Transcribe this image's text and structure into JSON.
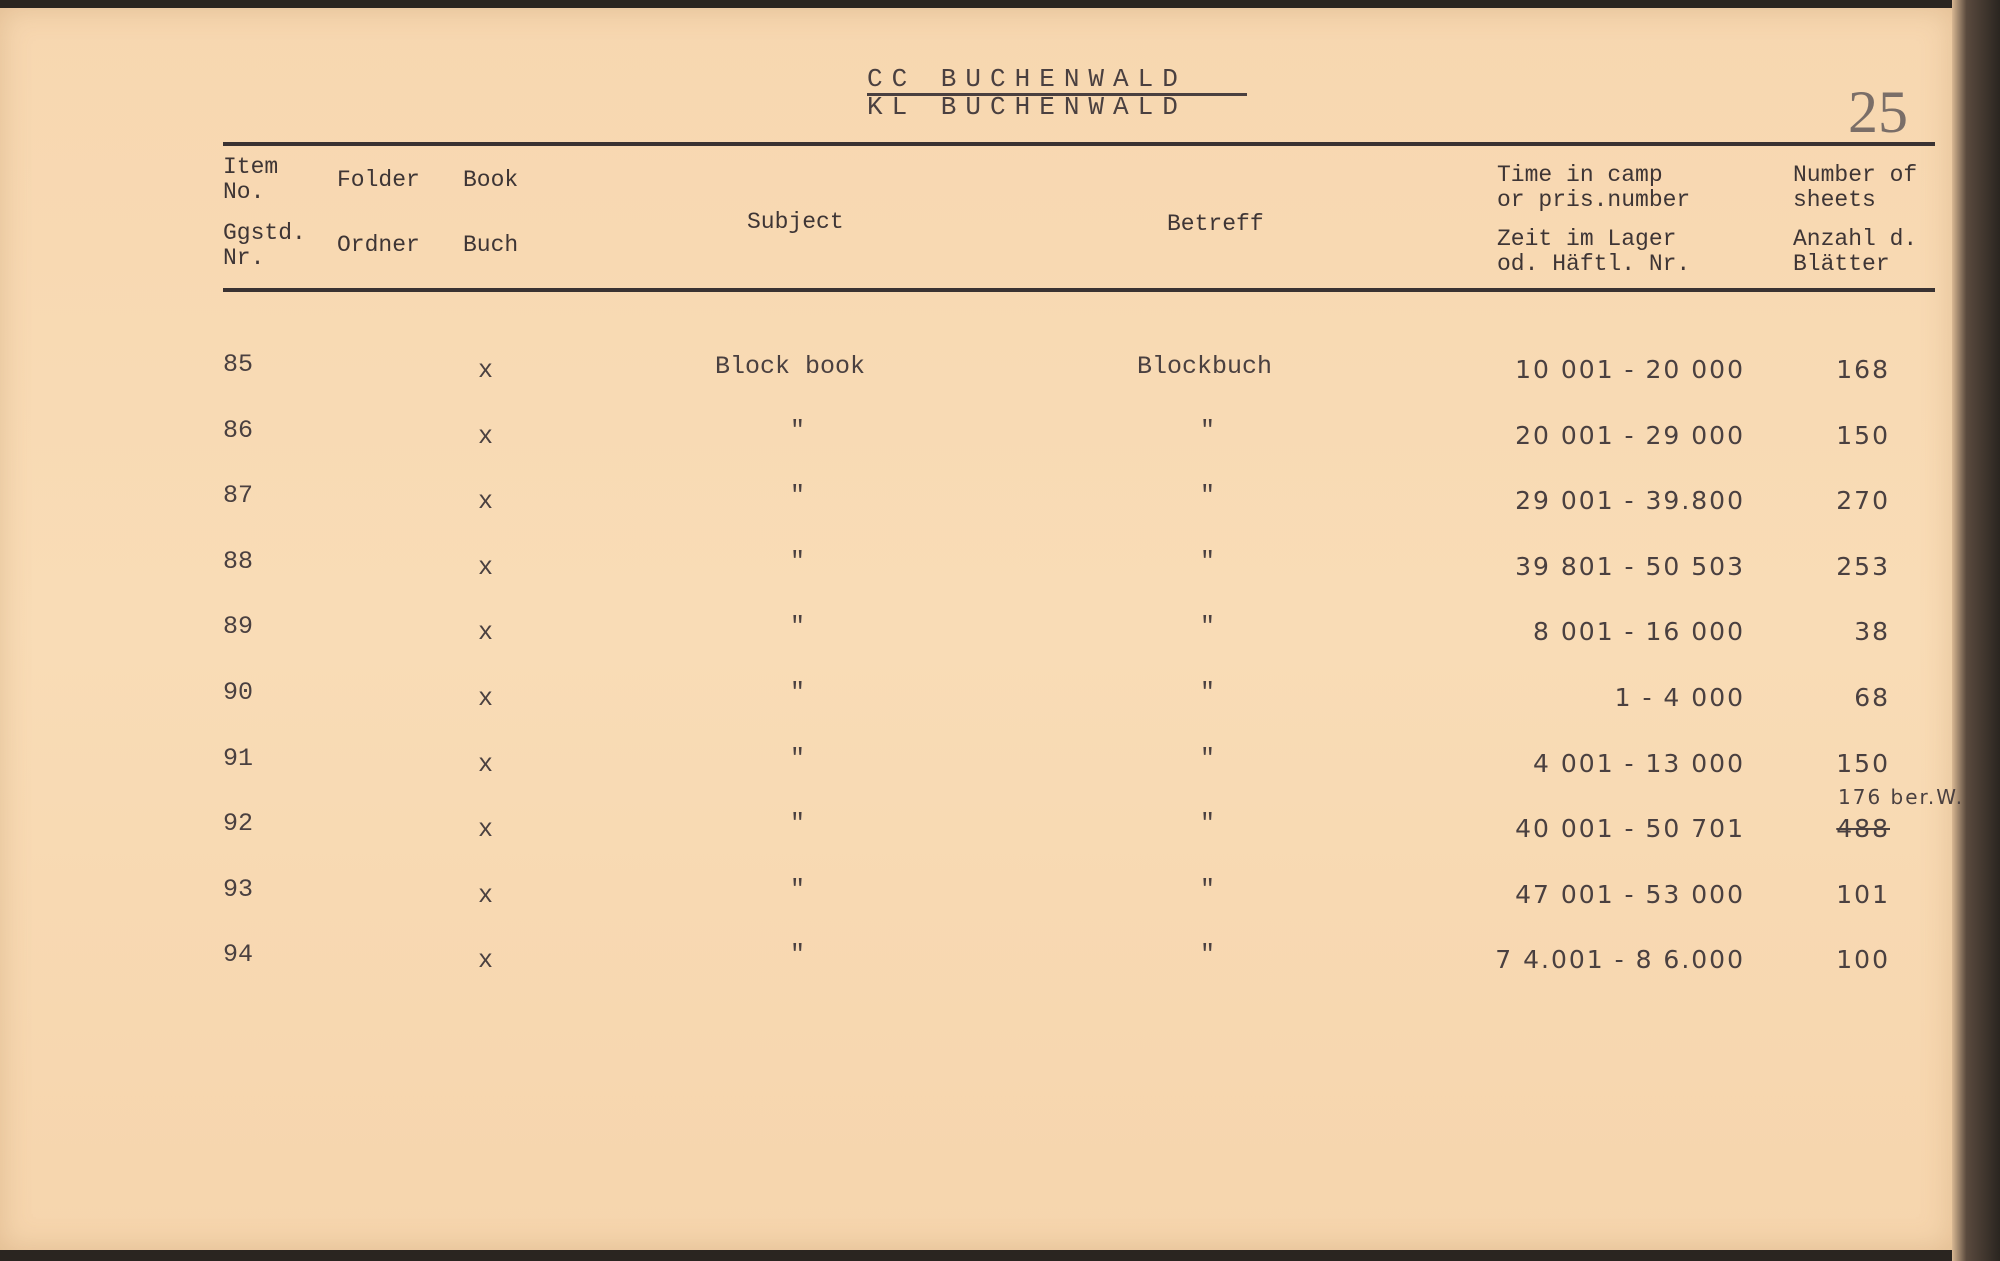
{
  "title": {
    "line1": "CC  BUCHENWALD",
    "line2": "KL  BUCHENWALD"
  },
  "page_number": "25",
  "headers": {
    "item_en": [
      "Item",
      "No."
    ],
    "item_de": [
      "Ggstd.",
      "Nr."
    ],
    "folder_en": "Folder",
    "folder_de": "Ordner",
    "book_en": "Book",
    "book_de": "Buch",
    "subject": "Subject",
    "betreff": "Betreff",
    "time_en": [
      "Time in camp",
      "or pris.number"
    ],
    "time_de": [
      "Zeit im Lager",
      "od. Häftl. Nr."
    ],
    "sheets_en": [
      "Number of",
      "sheets"
    ],
    "sheets_de": [
      "Anzahl d.",
      "Blätter"
    ]
  },
  "rows": [
    {
      "item": "85",
      "book": "x",
      "subject": "Block book",
      "betreff": "Blockbuch",
      "range": "10 001 -  20 000",
      "sheets": "168"
    },
    {
      "item": "86",
      "book": "x",
      "subject": "\"",
      "betreff": "\"",
      "range": "20 001 -  29 000",
      "sheets": "150"
    },
    {
      "item": "87",
      "book": "x",
      "subject": "\"",
      "betreff": "\"",
      "range": "29 001 -  39.800",
      "sheets": "270"
    },
    {
      "item": "88",
      "book": "x",
      "subject": "\"",
      "betreff": "\"",
      "range": "39 801 -  50 503",
      "sheets": "253"
    },
    {
      "item": "89",
      "book": "x",
      "subject": "\"",
      "betreff": "\"",
      "range": "8 001 -  16 000",
      "sheets": "38"
    },
    {
      "item": "90",
      "book": "x",
      "subject": "\"",
      "betreff": "\"",
      "range": "1 -   4 000",
      "sheets": "68"
    },
    {
      "item": "91",
      "book": "x",
      "subject": "\"",
      "betreff": "\"",
      "range": "4 001 -  13 000",
      "sheets": "150"
    },
    {
      "item": "92",
      "book": "x",
      "subject": "\"",
      "betreff": "\"",
      "range": "40 001 -  50 701",
      "sheets": "488",
      "sheets_correction": "176 ber.W."
    },
    {
      "item": "93",
      "book": "x",
      "subject": "\"",
      "betreff": "\"",
      "range": "47 001 -  53 000",
      "sheets": "101"
    },
    {
      "item": "94",
      "book": "x",
      "subject": "\"",
      "betreff": "\"",
      "range": "7 4.001 -  8 6.000",
      "sheets": "100"
    }
  ]
}
